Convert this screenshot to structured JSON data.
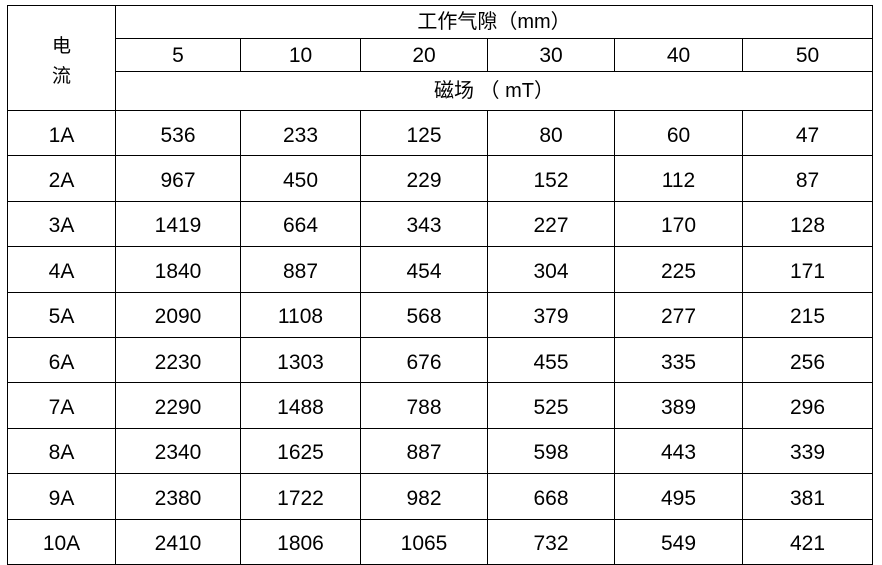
{
  "table": {
    "corner_label": [
      "电",
      "流"
    ],
    "gap_header": "工作气隙（mm）",
    "gaps": [
      "5",
      "10",
      "20",
      "30",
      "40",
      "50"
    ],
    "field_header": "磁场 （ mT）",
    "rows": [
      {
        "current": "1A",
        "values": [
          "536",
          "233",
          "125",
          "80",
          "60",
          "47"
        ]
      },
      {
        "current": "2A",
        "values": [
          "967",
          "450",
          "229",
          "152",
          "112",
          "87"
        ]
      },
      {
        "current": "3A",
        "values": [
          "1419",
          "664",
          "343",
          "227",
          "170",
          "128"
        ]
      },
      {
        "current": "4A",
        "values": [
          "1840",
          "887",
          "454",
          "304",
          "225",
          "171"
        ]
      },
      {
        "current": "5A",
        "values": [
          "2090",
          "1108",
          "568",
          "379",
          "277",
          "215"
        ]
      },
      {
        "current": "6A",
        "values": [
          "2230",
          "1303",
          "676",
          "455",
          "335",
          "256"
        ]
      },
      {
        "current": "7A",
        "values": [
          "2290",
          "1488",
          "788",
          "525",
          "389",
          "296"
        ]
      },
      {
        "current": "8A",
        "values": [
          "2340",
          "1625",
          "887",
          "598",
          "443",
          "339"
        ]
      },
      {
        "current": "9A",
        "values": [
          "2380",
          "1722",
          "982",
          "668",
          "495",
          "381"
        ]
      },
      {
        "current": "10A",
        "values": [
          "2410",
          "1806",
          "1065",
          "732",
          "549",
          "421"
        ]
      }
    ]
  }
}
